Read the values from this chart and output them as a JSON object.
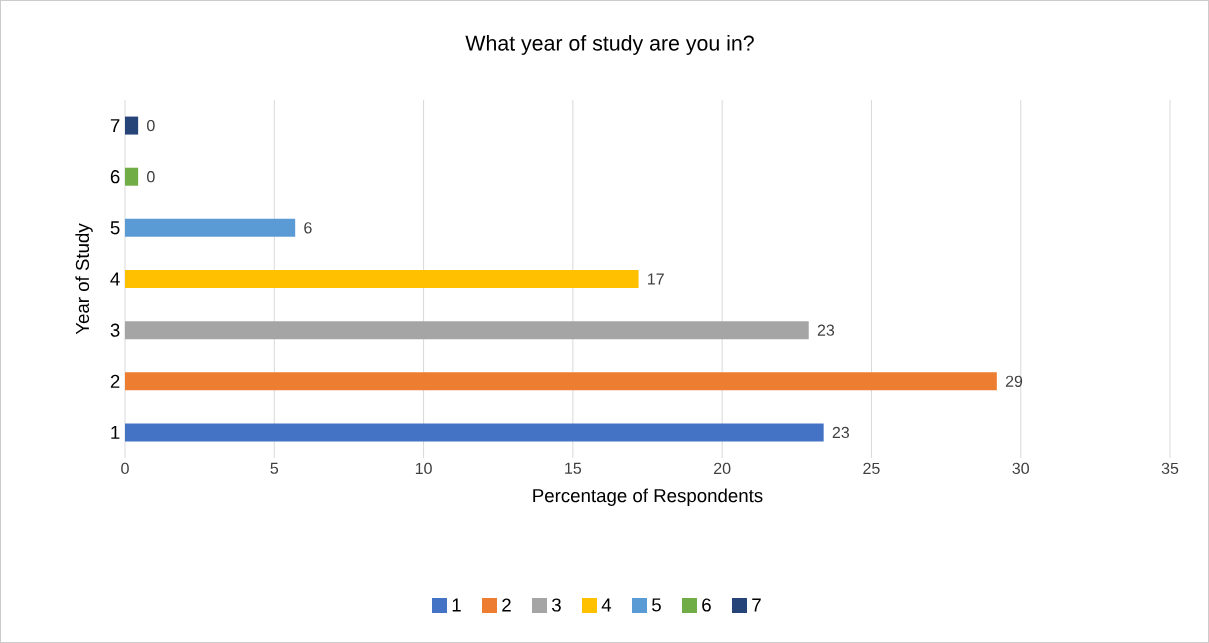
{
  "chart_data": {
    "type": "bar",
    "orientation": "horizontal",
    "title": "What year of study are you in?",
    "xlabel": "Percentage of Respondents",
    "ylabel": "Year of Study",
    "categories": [
      "7",
      "6",
      "5",
      "4",
      "3",
      "2",
      "1"
    ],
    "series": [
      {
        "name": "1",
        "color": "#4472c4",
        "values": [
          null,
          null,
          null,
          null,
          null,
          null,
          23.4
        ],
        "value_labels": [
          null,
          null,
          null,
          null,
          null,
          null,
          "23"
        ]
      },
      {
        "name": "2",
        "color": "#ed7d31",
        "values": [
          null,
          null,
          null,
          null,
          null,
          29.2,
          null
        ],
        "value_labels": [
          null,
          null,
          null,
          null,
          null,
          "29",
          null
        ]
      },
      {
        "name": "3",
        "color": "#a5a5a5",
        "values": [
          null,
          null,
          null,
          null,
          22.9,
          null,
          null
        ],
        "value_labels": [
          null,
          null,
          null,
          null,
          "23",
          null,
          null
        ]
      },
      {
        "name": "4",
        "color": "#ffc000",
        "values": [
          null,
          null,
          null,
          17.2,
          null,
          null,
          null
        ],
        "value_labels": [
          null,
          null,
          null,
          "17",
          null,
          null,
          null
        ]
      },
      {
        "name": "5",
        "color": "#5b9bd5",
        "values": [
          null,
          null,
          5.7,
          null,
          null,
          null,
          null
        ],
        "value_labels": [
          null,
          null,
          "6",
          null,
          null,
          null,
          null
        ]
      },
      {
        "name": "6",
        "color": "#70ad47",
        "values": [
          null,
          0.44,
          null,
          null,
          null,
          null,
          null
        ],
        "value_labels": [
          null,
          "0",
          null,
          null,
          null,
          null,
          null
        ]
      },
      {
        "name": "7",
        "color": "#264478",
        "values": [
          0.44,
          null,
          null,
          null,
          null,
          null,
          null
        ],
        "value_labels": [
          "0",
          null,
          null,
          null,
          null,
          null,
          null
        ]
      }
    ],
    "xlim": [
      0,
      35
    ],
    "xticks": [
      0,
      5,
      10,
      15,
      20,
      25,
      30,
      35
    ],
    "grid": "x",
    "legend": "bottom"
  }
}
